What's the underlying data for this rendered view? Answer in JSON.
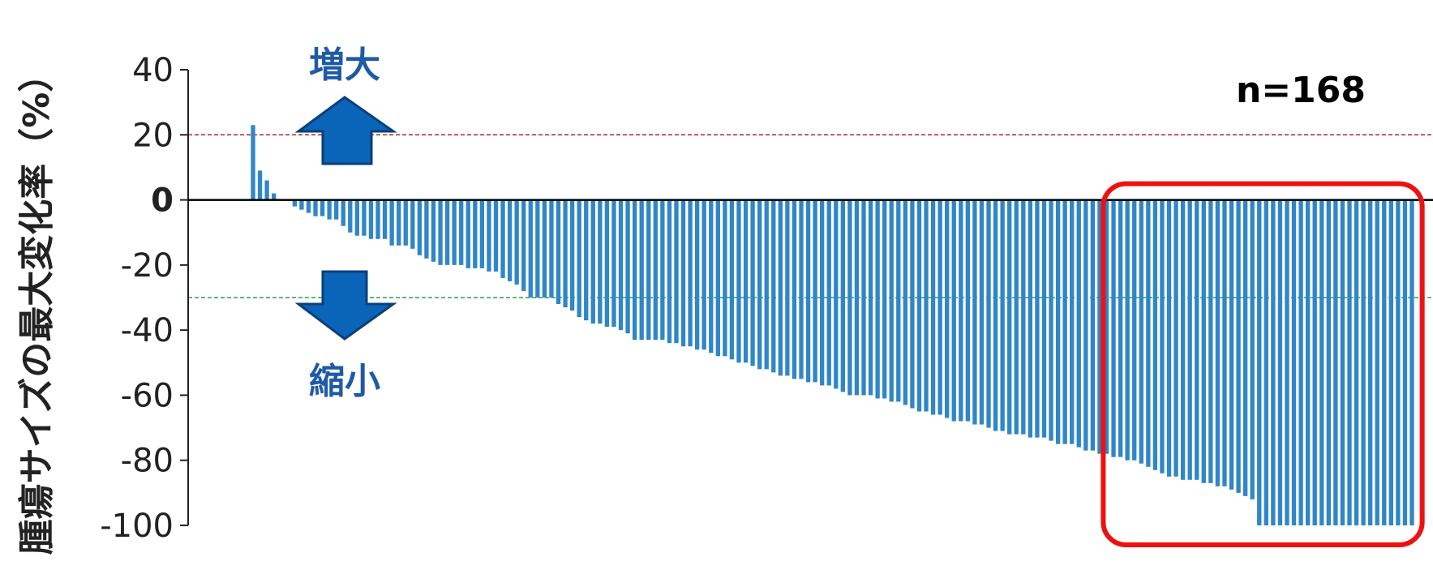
{
  "chart_data": {
    "type": "bar",
    "ylabel": "腫瘍サイズの最大変化率（%）",
    "ylim": [
      -100,
      40
    ],
    "yticks": [
      "40",
      "20",
      "0",
      "-20",
      "-40",
      "-60",
      "-80",
      "-100"
    ],
    "ytick_values": [
      40,
      20,
      0,
      -20,
      -40,
      -60,
      -80,
      -100
    ],
    "reference_lines": [
      {
        "value": 20,
        "color": "#b22222",
        "style": "dashed"
      },
      {
        "value": -30,
        "color": "#2e9e4f",
        "style": "dashed"
      }
    ],
    "annotations": {
      "increase": "増大",
      "decrease": "縮小",
      "n": "n=168"
    },
    "highlight": {
      "from_index": 124,
      "to_index": 167,
      "color": "#ee1111"
    },
    "bar_color": "#2f86c8",
    "values": [
      23,
      9,
      6,
      2,
      0,
      0,
      -2,
      -3,
      -4,
      -5,
      -5,
      -6,
      -6,
      -8,
      -10,
      -11,
      -11,
      -12,
      -12,
      -12,
      -14,
      -14,
      -14,
      -15,
      -17,
      -18,
      -19,
      -20,
      -20,
      -20,
      -20,
      -21,
      -21,
      -21,
      -22,
      -22,
      -24,
      -25,
      -26,
      -28,
      -30,
      -30,
      -30,
      -30,
      -32,
      -33,
      -34,
      -36,
      -37,
      -38,
      -38,
      -39,
      -39,
      -40,
      -41,
      -43,
      -43,
      -43,
      -43,
      -43,
      -44,
      -44,
      -45,
      -45,
      -46,
      -46,
      -47,
      -48,
      -48,
      -49,
      -50,
      -50,
      -51,
      -52,
      -52,
      -53,
      -54,
      -54,
      -55,
      -55,
      -56,
      -56,
      -57,
      -57,
      -58,
      -59,
      -60,
      -60,
      -60,
      -60,
      -61,
      -61,
      -62,
      -62,
      -63,
      -64,
      -65,
      -65,
      -66,
      -66,
      -67,
      -68,
      -68,
      -68,
      -69,
      -69,
      -70,
      -71,
      -71,
      -72,
      -72,
      -72,
      -73,
      -73,
      -73,
      -74,
      -75,
      -75,
      -75,
      -76,
      -77,
      -77,
      -78,
      -78,
      -79,
      -79,
      -80,
      -80,
      -81,
      -82,
      -83,
      -84,
      -85,
      -85,
      -86,
      -86,
      -86,
      -87,
      -87,
      -88,
      -88,
      -89,
      -90,
      -91,
      -92,
      -100,
      -100,
      -100,
      -100,
      -100,
      -100,
      -100,
      -100,
      -100,
      -100,
      -100,
      -100,
      -100,
      -100,
      -100,
      -100,
      -100,
      -100,
      -100,
      -100,
      -100,
      -100,
      -100
    ]
  }
}
